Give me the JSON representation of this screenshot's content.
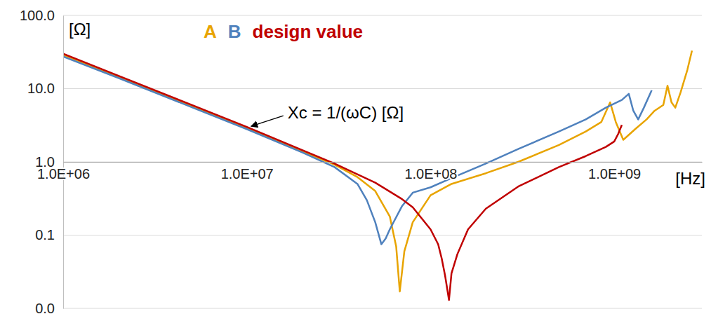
{
  "chart_data": {
    "type": "line",
    "log": true,
    "grid": true,
    "legend": "top",
    "y_label": "[Ω]",
    "x_label": "[Hz]",
    "xlim": [
      1000000.0,
      3000000000.0
    ],
    "ylim": [
      0.01,
      100
    ],
    "xticks": [
      {
        "value": 1000000.0,
        "label": "1.0E+06"
      },
      {
        "value": 10000000.0,
        "label": "1.0E+07"
      },
      {
        "value": 100000000.0,
        "label": "1.0E+08"
      },
      {
        "value": 1000000000.0,
        "label": "1.0E+09"
      }
    ],
    "yticks": [
      {
        "value": 0.01,
        "label": "0.0"
      },
      0.1,
      {
        "value": 1,
        "label": "1.0"
      },
      {
        "value": 10,
        "label": "10.0"
      },
      {
        "value": 100,
        "label": "100.0"
      }
    ],
    "annotations": [
      {
        "text": "Xc = 1/(ωC) [Ω]"
      }
    ],
    "series": [
      {
        "name": "A",
        "color": "#e8a400",
        "x": [
          1000000.0,
          2000000.0,
          5000000.0,
          10000000.0,
          20000000.0,
          30000000.0,
          40000000.0,
          50000000.0,
          60000000.0,
          65000000.0,
          68000000.0,
          72000000.0,
          80000000.0,
          100000000.0,
          130000000.0,
          200000000.0,
          300000000.0,
          500000000.0,
          700000000.0,
          850000000.0,
          950000000.0,
          1020000000.0,
          1120000000.0,
          1300000000.0,
          1500000000.0,
          1660000000.0,
          1850000000.0,
          1950000000.0,
          2050000000.0,
          2150000000.0,
          2300000000.0,
          2500000000.0,
          2650000000.0
        ],
        "values": [
          29,
          14.5,
          5.8,
          2.9,
          1.4,
          0.92,
          0.62,
          0.4,
          0.18,
          0.07,
          0.017,
          0.06,
          0.15,
          0.35,
          0.5,
          0.7,
          1.0,
          1.7,
          2.6,
          3.5,
          6.5,
          3.5,
          2.0,
          2.8,
          3.8,
          5.0,
          6.0,
          11,
          6.5,
          5.5,
          9,
          18,
          33
        ]
      },
      {
        "name": "B",
        "color": "#4f81bd",
        "x": [
          1000000.0,
          2000000.0,
          5000000.0,
          10000000.0,
          20000000.0,
          30000000.0,
          40000000.0,
          45000000.0,
          50000000.0,
          54000000.0,
          57000000.0,
          60000000.0,
          70000000.0,
          80000000.0,
          100000000.0,
          130000000.0,
          200000000.0,
          300000000.0,
          500000000.0,
          700000000.0,
          900000000.0,
          1100000000.0,
          1200000000.0,
          1270000000.0,
          1350000000.0,
          1450000000.0,
          1600000000.0
        ],
        "values": [
          27.5,
          14,
          5.6,
          2.8,
          1.35,
          0.85,
          0.5,
          0.3,
          0.15,
          0.075,
          0.09,
          0.12,
          0.25,
          0.38,
          0.45,
          0.6,
          0.95,
          1.5,
          2.6,
          3.8,
          5.5,
          7.0,
          8.5,
          5.0,
          3.8,
          5.5,
          9.5
        ]
      },
      {
        "name": "design value",
        "color": "#c00000",
        "x": [
          1000000.0,
          2000000.0,
          5000000.0,
          10000000.0,
          20000000.0,
          30000000.0,
          50000000.0,
          70000000.0,
          80000000.0,
          100000000.0,
          110000000.0,
          115000000.0,
          120000000.0,
          126000000.0,
          130000000.0,
          140000000.0,
          160000000.0,
          200000000.0,
          300000000.0,
          500000000.0,
          700000000.0,
          900000000.0,
          1000000000.0,
          1050000000.0,
          1100000000.0
        ],
        "values": [
          30,
          15,
          6,
          3,
          1.45,
          0.95,
          0.52,
          0.31,
          0.24,
          0.12,
          0.075,
          0.048,
          0.028,
          0.013,
          0.03,
          0.055,
          0.12,
          0.23,
          0.46,
          0.85,
          1.2,
          1.6,
          1.9,
          2.4,
          3.2
        ]
      }
    ]
  }
}
